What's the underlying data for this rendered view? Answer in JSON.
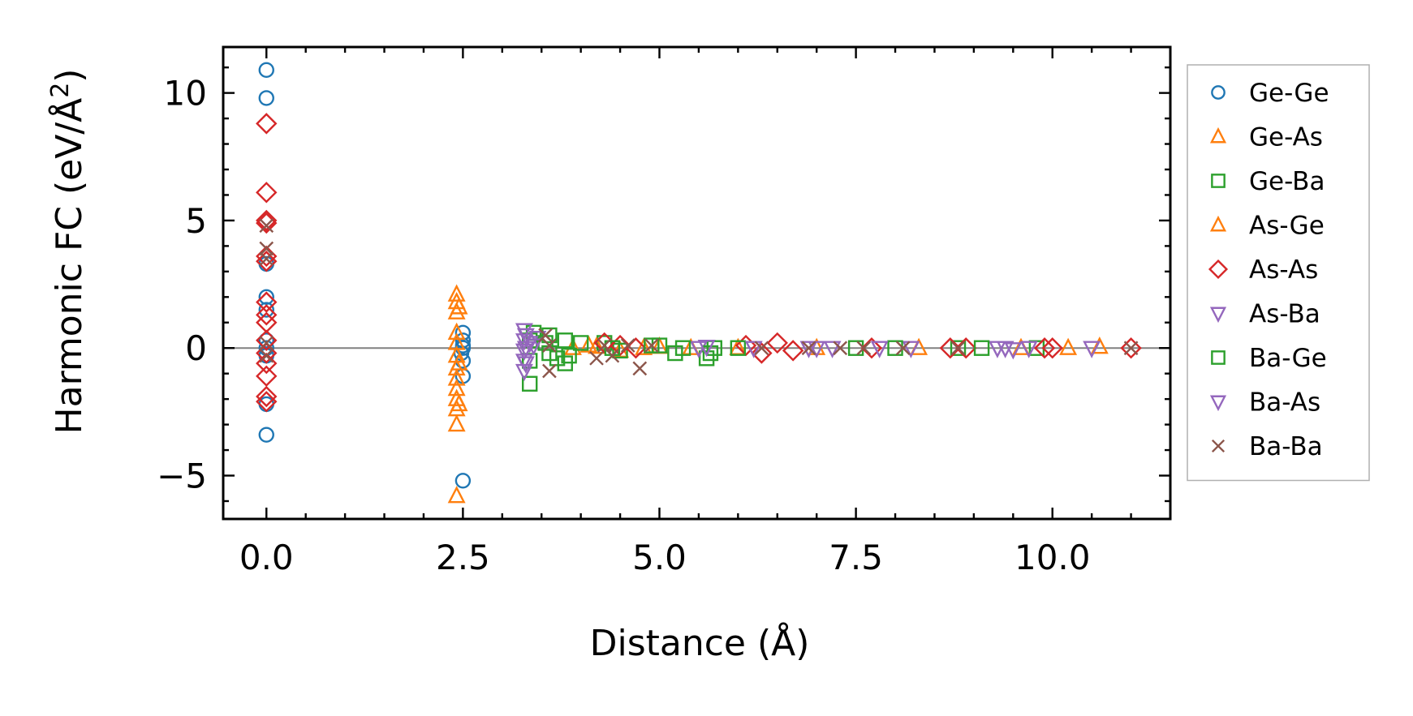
{
  "chart_data": {
    "type": "scatter",
    "title": "",
    "xlabel": "Distance (Å)",
    "ylabel": "Harmonic FC (eV/Å",
    "ylabel_sup": "2",
    "ylabel_close": ")",
    "xlim": [
      -0.55,
      11.5
    ],
    "ylim": [
      -6.7,
      11.8
    ],
    "xticks": [
      0,
      2.5,
      5,
      7.5,
      10
    ],
    "xtick_labels": [
      "0.0",
      "2.5",
      "5.0",
      "7.5",
      "10.0"
    ],
    "yticks": [
      -5,
      0,
      5,
      10
    ],
    "ytick_labels": [
      "−5",
      "0",
      "5",
      "10"
    ],
    "zero_line": 0,
    "legend_position": "right",
    "series": [
      {
        "name": "Ge-Ge",
        "marker": "circle",
        "color": "#1f77b4",
        "points": [
          [
            0,
            10.9
          ],
          [
            0,
            9.8
          ],
          [
            0,
            2.0
          ],
          [
            0,
            1.5
          ],
          [
            0,
            0.3
          ],
          [
            0,
            0.0
          ],
          [
            0,
            -0.3
          ],
          [
            0,
            -2.2
          ],
          [
            0,
            -3.4
          ],
          [
            0,
            3.3
          ],
          [
            2.5,
            0.6
          ],
          [
            2.5,
            0.3
          ],
          [
            2.5,
            0.0
          ],
          [
            2.5,
            -0.5
          ],
          [
            2.5,
            -1.1
          ],
          [
            2.5,
            -5.2
          ],
          [
            2.48,
            -0.2
          ],
          [
            2.5,
            0.1
          ]
        ]
      },
      {
        "name": "Ge-As",
        "marker": "triangle-up",
        "color": "#ff7f0e",
        "points": [
          [
            2.42,
            2.1
          ],
          [
            2.42,
            1.8
          ],
          [
            2.42,
            1.4
          ],
          [
            2.42,
            0.6
          ],
          [
            2.42,
            0.2
          ],
          [
            2.42,
            -0.3
          ],
          [
            2.42,
            -0.8
          ],
          [
            2.42,
            -1.2
          ],
          [
            2.42,
            -1.6
          ],
          [
            2.42,
            -2.0
          ],
          [
            2.42,
            -2.4
          ],
          [
            2.42,
            -3.0
          ],
          [
            2.42,
            -5.8
          ],
          [
            3.9,
            0.0
          ],
          [
            4.1,
            0.1
          ],
          [
            4.5,
            -0.1
          ],
          [
            5.0,
            0.05
          ],
          [
            6.0,
            0.0
          ],
          [
            7.0,
            0.0
          ],
          [
            8.3,
            0.0
          ],
          [
            9.6,
            0.0
          ],
          [
            10.2,
            0.0
          ],
          [
            10.6,
            0.05
          ]
        ]
      },
      {
        "name": "Ge-Ba",
        "marker": "square",
        "color": "#2ca02c",
        "points": [
          [
            3.35,
            -1.4
          ],
          [
            3.35,
            -0.5
          ],
          [
            3.35,
            0.3
          ],
          [
            3.4,
            0.6
          ],
          [
            3.55,
            0.2
          ],
          [
            3.6,
            -0.2
          ],
          [
            3.8,
            0.3
          ],
          [
            3.8,
            -0.6
          ],
          [
            3.85,
            -0.3
          ],
          [
            4.3,
            0.2
          ],
          [
            4.5,
            -0.1
          ],
          [
            5.0,
            0.1
          ],
          [
            5.6,
            -0.4
          ],
          [
            5.7,
            0.0
          ],
          [
            5.2,
            -0.2
          ],
          [
            7.5,
            0.0
          ],
          [
            8.8,
            0.0
          ],
          [
            9.8,
            0.0
          ]
        ]
      },
      {
        "name": "As-Ge",
        "marker": "triangle-up",
        "color": "#ff7f0e",
        "points": [
          [
            2.45,
            1.6
          ],
          [
            2.45,
            -0.6
          ],
          [
            2.45,
            -2.2
          ],
          [
            4.2,
            0.05
          ],
          [
            4.8,
            0.0
          ],
          [
            5.4,
            0.0
          ]
        ]
      },
      {
        "name": "As-As",
        "marker": "diamond",
        "color": "#d62728",
        "points": [
          [
            0,
            8.8
          ],
          [
            0,
            6.1
          ],
          [
            0,
            5.0
          ],
          [
            0,
            4.9
          ],
          [
            0,
            3.6
          ],
          [
            0,
            3.4
          ],
          [
            0,
            1.8
          ],
          [
            0,
            1.3
          ],
          [
            0,
            1.0
          ],
          [
            0,
            0.3
          ],
          [
            0,
            -0.2
          ],
          [
            0,
            -0.6
          ],
          [
            0,
            -1.1
          ],
          [
            0,
            -1.9
          ],
          [
            0,
            -2.1
          ],
          [
            4.3,
            0.2
          ],
          [
            4.5,
            0.1
          ],
          [
            4.7,
            0.0
          ],
          [
            6.1,
            0.1
          ],
          [
            6.3,
            -0.2
          ],
          [
            6.5,
            0.2
          ],
          [
            6.7,
            -0.1
          ],
          [
            7.7,
            0.0
          ],
          [
            8.7,
            0.0
          ],
          [
            8.9,
            0.0
          ],
          [
            9.9,
            0.0
          ],
          [
            10.0,
            0.0
          ],
          [
            11.0,
            0.0
          ]
        ]
      },
      {
        "name": "As-Ba",
        "marker": "triangle-down",
        "color": "#9467bd",
        "points": [
          [
            3.28,
            0.7
          ],
          [
            3.28,
            0.3
          ],
          [
            3.28,
            -0.1
          ],
          [
            3.28,
            -0.5
          ],
          [
            3.28,
            -0.9
          ],
          [
            3.35,
            0.2
          ],
          [
            3.45,
            0.4
          ],
          [
            5.5,
            0.0
          ],
          [
            6.9,
            0.0
          ],
          [
            7.2,
            0.0
          ],
          [
            8.2,
            0.0
          ],
          [
            9.3,
            0.0
          ],
          [
            9.5,
            -0.05
          ],
          [
            10.5,
            0.0
          ]
        ]
      },
      {
        "name": "Ba-Ge",
        "marker": "square",
        "color": "#2ca02c",
        "points": [
          [
            3.6,
            0.5
          ],
          [
            3.7,
            -0.4
          ],
          [
            4.0,
            0.2
          ],
          [
            4.4,
            0.0
          ],
          [
            4.9,
            0.1
          ],
          [
            5.3,
            0.0
          ],
          [
            5.65,
            -0.2
          ],
          [
            6.0,
            0.0
          ],
          [
            8.0,
            0.0
          ],
          [
            9.1,
            0.0
          ]
        ]
      },
      {
        "name": "Ba-As",
        "marker": "triangle-down",
        "color": "#9467bd",
        "points": [
          [
            3.3,
            0.5
          ],
          [
            3.3,
            0.0
          ],
          [
            3.3,
            -0.6
          ],
          [
            3.4,
            0.1
          ],
          [
            5.6,
            0.05
          ],
          [
            6.2,
            0.0
          ],
          [
            7.0,
            0.0
          ],
          [
            7.8,
            0.0
          ],
          [
            9.4,
            0.0
          ],
          [
            9.7,
            0.0
          ]
        ]
      },
      {
        "name": "Ba-Ba",
        "marker": "x",
        "color": "#8c564b",
        "points": [
          [
            0,
            4.8
          ],
          [
            0,
            3.9
          ],
          [
            0,
            3.5
          ],
          [
            0,
            0.2
          ],
          [
            0,
            -0.3
          ],
          [
            3.55,
            0.5
          ],
          [
            3.6,
            0.1
          ],
          [
            3.6,
            -0.9
          ],
          [
            4.2,
            -0.4
          ],
          [
            4.3,
            0.1
          ],
          [
            4.4,
            -0.3
          ],
          [
            4.6,
            0.1
          ],
          [
            4.75,
            -0.8
          ],
          [
            4.9,
            0.1
          ],
          [
            6.3,
            0.0
          ],
          [
            6.9,
            0.0
          ],
          [
            7.3,
            0.0
          ],
          [
            7.6,
            0.0
          ],
          [
            8.1,
            0.0
          ],
          [
            8.8,
            0.0
          ],
          [
            11.0,
            0.0
          ]
        ]
      }
    ]
  }
}
